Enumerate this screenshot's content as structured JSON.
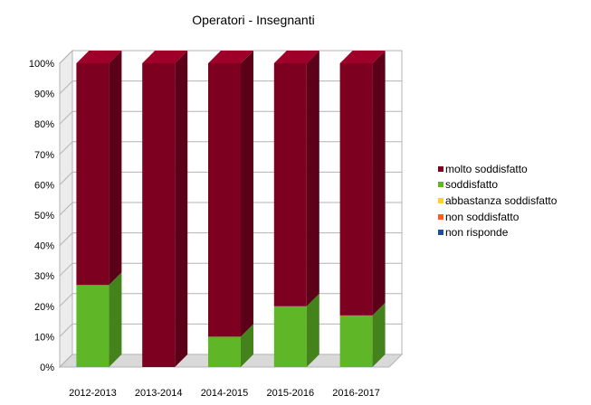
{
  "chart_data": {
    "type": "bar",
    "stacked": true,
    "percent": true,
    "title": "Operatori - Insegnanti",
    "categories": [
      "2012-2013",
      "2013-2014",
      "2014-2015",
      "2015-2016",
      "2016-2017"
    ],
    "ylim": [
      0,
      100
    ],
    "yticks": [
      "0%",
      "10%",
      "20%",
      "30%",
      "40%",
      "50%",
      "60%",
      "70%",
      "80%",
      "90%",
      "100%"
    ],
    "grid": true,
    "legend_position": "right",
    "series": [
      {
        "name": "non risponde",
        "color": "#1f4e9c",
        "values": [
          0,
          0,
          0,
          0,
          0
        ]
      },
      {
        "name": "non soddisfatto",
        "color": "#ff5b1f",
        "values": [
          0,
          0,
          0,
          0,
          0
        ]
      },
      {
        "name": "abbastanza soddisfatto",
        "color": "#ffd320",
        "values": [
          0,
          0,
          0,
          0,
          0
        ]
      },
      {
        "name": "soddisfatto",
        "color": "#5fb626",
        "values": [
          27,
          0,
          10,
          20,
          17
        ]
      },
      {
        "name": "molto soddisfatto",
        "color": "#7e0021",
        "values": [
          73,
          100,
          90,
          80,
          83
        ]
      }
    ],
    "legend_order": [
      "molto soddisfatto",
      "soddisfatto",
      "abbastanza soddisfatto",
      "non soddisfatto",
      "non risponde"
    ]
  }
}
